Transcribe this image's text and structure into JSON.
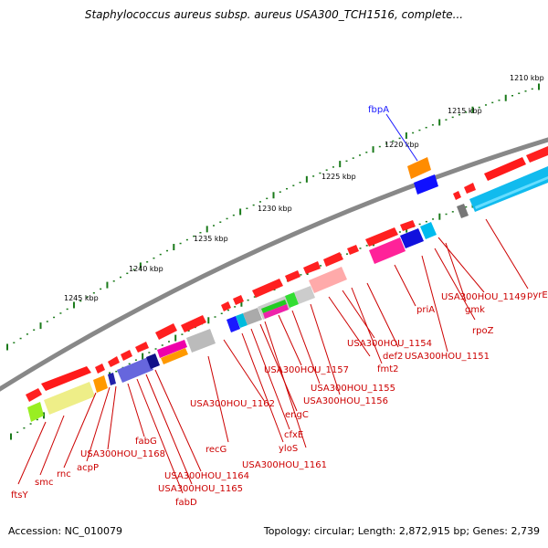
{
  "title": "Staphylococcus aureus subsp. aureus USA300_TCH1516, complete...",
  "footer": {
    "accession": "Accession: NC_010079",
    "topology": "Topology: circular; Length: 2,872,915 bp; Genes: 2,739"
  },
  "scale_labels": [
    "1210 kbp",
    "1215 kbp",
    "1220 kbp",
    "1225 kbp",
    "1230 kbp",
    "1235 kbp",
    "1240 kbp",
    "1245 kbp"
  ],
  "gene_labels": [
    "fbpA",
    "pyrE",
    "USA300HOU_1149",
    "gmk",
    "rpoZ",
    "USA300HOU_1151",
    "priA",
    "USA300HOU_1154",
    "def2",
    "fmt2",
    "USA300HOU_1155",
    "USA300HOU_1156",
    "USA300HOU_1157",
    "engC",
    "cfxE",
    "yloS",
    "USA300HOU_1161",
    "USA300HOU_1162",
    "recG",
    "USA300HOU_1164",
    "USA300HOU_1165",
    "fabD",
    "fabG",
    "USA300HOU_1168",
    "acpP",
    "rnc",
    "smc",
    "ftsY"
  ],
  "colors": {
    "forward_gene": "#ff0000",
    "label_text": "#cc0000",
    "highlight_label": "#1a1aff",
    "backbone": "#888888",
    "tick": "#1a7a1a"
  }
}
